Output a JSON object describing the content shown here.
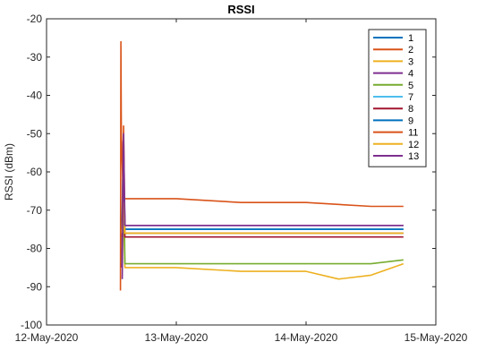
{
  "chart_data": {
    "type": "line",
    "title": "RSSI",
    "xlabel": "",
    "ylabel": "RSSI (dBm)",
    "xlim": [
      "2020-05-12 00:00",
      "2020-05-15 00:00"
    ],
    "ylim": [
      -100,
      -20
    ],
    "x_ticks": [
      "12-May-2020",
      "13-May-2020",
      "14-May-2020",
      "15-May-2020"
    ],
    "y_ticks": [
      -20,
      -30,
      -40,
      -50,
      -60,
      -70,
      -80,
      -90,
      -100
    ],
    "grid": false,
    "legend_position": "top-right",
    "series": [
      {
        "name": "1",
        "color": "#0072BD",
        "x": [
          "2020-05-12 13:55",
          "2020-05-12 14:05",
          "2020-05-12 14:20",
          "2020-05-13 00:00",
          "2020-05-13 12:00",
          "2020-05-14 00:00",
          "2020-05-14 12:00",
          "2020-05-14 18:00"
        ],
        "y": [
          -75,
          -62,
          -75,
          -75,
          -75,
          -75,
          -75,
          -75
        ]
      },
      {
        "name": "2",
        "color": "#D95319",
        "x": [
          "2020-05-12 13:40",
          "2020-05-12 13:45",
          "2020-05-12 13:50",
          "2020-05-12 14:10",
          "2020-05-12 14:30",
          "2020-05-13 00:00",
          "2020-05-13 12:00",
          "2020-05-14 00:00",
          "2020-05-14 12:00",
          "2020-05-14 18:00"
        ],
        "y": [
          -91,
          -26,
          -50,
          -66,
          -67,
          -67,
          -68,
          -68,
          -69,
          -69
        ]
      },
      {
        "name": "3",
        "color": "#EDB120",
        "x": [
          "2020-05-12 13:55",
          "2020-05-12 14:10",
          "2020-05-12 14:30",
          "2020-05-13 00:00",
          "2020-05-13 12:00",
          "2020-05-14 00:00",
          "2020-05-14 06:00",
          "2020-05-14 12:00",
          "2020-05-14 18:00"
        ],
        "y": [
          -80,
          -65,
          -85,
          -85,
          -86,
          -86,
          -88,
          -87,
          -84
        ]
      },
      {
        "name": "4",
        "color": "#7E2F8E",
        "x": [
          "2020-05-12 13:55",
          "2020-05-12 14:10",
          "2020-05-12 14:30",
          "2020-05-13 00:00",
          "2020-05-13 12:00",
          "2020-05-14 00:00",
          "2020-05-14 12:00",
          "2020-05-14 18:00"
        ],
        "y": [
          -85,
          -52,
          -74,
          -74,
          -74,
          -74,
          -74,
          -74
        ]
      },
      {
        "name": "5",
        "color": "#77AC30",
        "x": [
          "2020-05-12 14:00",
          "2020-05-12 14:15",
          "2020-05-12 14:30",
          "2020-05-13 00:00",
          "2020-05-13 12:00",
          "2020-05-14 00:00",
          "2020-05-14 12:00",
          "2020-05-14 18:00"
        ],
        "y": [
          -84,
          -57,
          -84,
          -84,
          -84,
          -84,
          -84,
          -83
        ]
      },
      {
        "name": "7",
        "color": "#4DBEEE",
        "x": [
          "2020-05-12 14:00",
          "2020-05-12 14:15",
          "2020-05-12 14:30",
          "2020-05-13 00:00",
          "2020-05-13 12:00",
          "2020-05-14 00:00",
          "2020-05-14 12:00",
          "2020-05-14 18:00"
        ],
        "y": [
          -76,
          -70,
          -76,
          -76,
          -76,
          -76,
          -76,
          -76
        ]
      },
      {
        "name": "8",
        "color": "#A2142F",
        "x": [
          "2020-05-12 14:00",
          "2020-05-12 14:15",
          "2020-05-12 14:30",
          "2020-05-13 00:00",
          "2020-05-13 12:00",
          "2020-05-14 00:00",
          "2020-05-14 12:00",
          "2020-05-14 18:00"
        ],
        "y": [
          -77,
          -65,
          -77,
          -77,
          -77,
          -77,
          -77,
          -77
        ]
      },
      {
        "name": "9",
        "color": "#0072BD",
        "x": [
          "2020-05-12 14:00",
          "2020-05-12 14:15",
          "2020-05-12 14:30",
          "2020-05-13 00:00",
          "2020-05-13 12:00",
          "2020-05-14 00:00",
          "2020-05-14 12:00",
          "2020-05-14 18:00"
        ],
        "y": [
          -75,
          -60,
          -75,
          -75,
          -75,
          -75,
          -75,
          -75
        ]
      },
      {
        "name": "11",
        "color": "#D95319",
        "x": [
          "2020-05-12 14:00",
          "2020-05-12 14:15",
          "2020-05-12 14:30",
          "2020-05-13 00:00",
          "2020-05-13 12:00",
          "2020-05-14 00:00",
          "2020-05-14 12:00",
          "2020-05-14 18:00"
        ],
        "y": [
          -76,
          -48,
          -76,
          -76,
          -76,
          -76,
          -76,
          -76
        ]
      },
      {
        "name": "12",
        "color": "#EDB120",
        "x": [
          "2020-05-12 14:00",
          "2020-05-12 14:15",
          "2020-05-12 14:30",
          "2020-05-13 00:00",
          "2020-05-13 12:00",
          "2020-05-14 00:00",
          "2020-05-14 12:00",
          "2020-05-14 18:00"
        ],
        "y": [
          -76,
          -68,
          -76,
          -76,
          -76,
          -76,
          -76,
          -76
        ]
      },
      {
        "name": "13",
        "color": "#7E2F8E",
        "x": [
          "2020-05-12 14:00",
          "2020-05-12 14:15",
          "2020-05-12 14:30",
          "2020-05-13 00:00",
          "2020-05-13 12:00",
          "2020-05-14 00:00",
          "2020-05-14 12:00",
          "2020-05-14 18:00"
        ],
        "y": [
          -88,
          -50,
          -74,
          -74,
          -74,
          -74,
          -74,
          -74
        ]
      }
    ]
  }
}
